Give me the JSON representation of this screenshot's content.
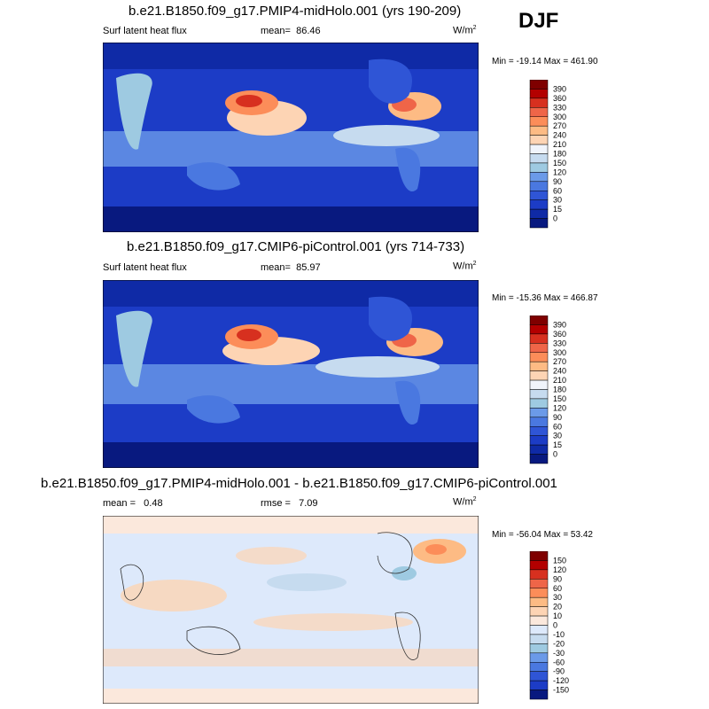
{
  "season": "DJF",
  "chart_data": [
    {
      "type": "heatmap",
      "title": "b.e21.B1850.f09_g17.PMIP4-midHolo.001 (yrs 190-209)",
      "variable": "Surf latent heat flux",
      "stat_label": "mean=",
      "stat_value": "86.46",
      "units_base": "W/m",
      "units_exp": "2",
      "minmax": "Min = -19.14 Max = 461.90",
      "colorbar_levels": [
        "390",
        "360",
        "330",
        "300",
        "270",
        "240",
        "210",
        "180",
        "150",
        "120",
        "90",
        "60",
        "30",
        "15",
        "0"
      ],
      "colorbar_colors": [
        "#7f0000",
        "#b30000",
        "#d7301f",
        "#ef6548",
        "#fc8d59",
        "#fdbb84",
        "#fdd4b4",
        "#f0f4fb",
        "#c6dbef",
        "#9ecae1",
        "#6b9ae8",
        "#4a78e0",
        "#2f55d6",
        "#1c3cc6",
        "#0f2aa6",
        "#08197f"
      ]
    },
    {
      "type": "heatmap",
      "title": "b.e21.B1850.f09_g17.CMIP6-piControl.001 (yrs 714-733)",
      "variable": "Surf latent heat flux",
      "stat_label": "mean=",
      "stat_value": "85.97",
      "units_base": "W/m",
      "units_exp": "2",
      "minmax": "Min = -15.36 Max = 466.87",
      "colorbar_levels": [
        "390",
        "360",
        "330",
        "300",
        "270",
        "240",
        "210",
        "180",
        "150",
        "120",
        "90",
        "60",
        "30",
        "15",
        "0"
      ],
      "colorbar_colors": [
        "#7f0000",
        "#b30000",
        "#d7301f",
        "#ef6548",
        "#fc8d59",
        "#fdbb84",
        "#fdd4b4",
        "#f0f4fb",
        "#c6dbef",
        "#9ecae1",
        "#6b9ae8",
        "#4a78e0",
        "#2f55d6",
        "#1c3cc6",
        "#0f2aa6",
        "#08197f"
      ]
    },
    {
      "type": "heatmap",
      "title": "b.e21.B1850.f09_g17.PMIP4-midHolo.001 - b.e21.B1850.f09_g17.CMIP6-piControl.001",
      "stat_label": "mean =",
      "stat_value": "0.48",
      "stat2_label": "rmse =",
      "stat2_value": "7.09",
      "units_base": "W/m",
      "units_exp": "2",
      "minmax": "Min = -56.04 Max =  53.42",
      "colorbar_levels": [
        "150",
        "120",
        "90",
        "60",
        "30",
        "20",
        "10",
        "0",
        "-10",
        "-20",
        "-30",
        "-60",
        "-90",
        "-120",
        "-150"
      ],
      "colorbar_colors": [
        "#7f0000",
        "#b30000",
        "#d7301f",
        "#ef6548",
        "#fc8d59",
        "#fdbb84",
        "#fdd4b4",
        "#fbe8dc",
        "#dde9fb",
        "#c6dbef",
        "#9ecae1",
        "#6b9ae8",
        "#4a78e0",
        "#2f55d6",
        "#1c3cc6",
        "#08197f"
      ]
    }
  ]
}
